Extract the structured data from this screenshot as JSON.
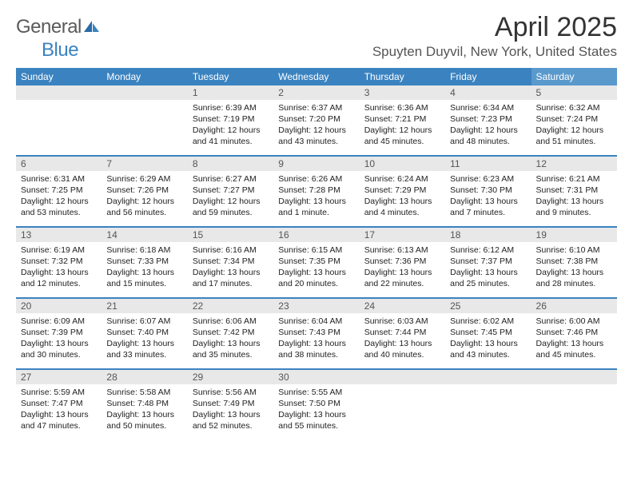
{
  "colors": {
    "header_bg": "#3b83c0",
    "header_bg_sat": "#5a99cc",
    "header_text": "#ffffff",
    "daynum_bg": "#e8e8e8",
    "daynum_text": "#555555",
    "body_text": "#222222",
    "separator": "#3b83c0",
    "page_bg": "#ffffff",
    "logo_gray": "#5a5a5a",
    "logo_blue": "#3b83c0"
  },
  "typography": {
    "title_fontsize": 34,
    "location_fontsize": 17,
    "header_fontsize": 12,
    "cell_fontsize": 10.5
  },
  "logo": {
    "text_a": "General",
    "text_b": "Blue"
  },
  "title": "April 2025",
  "location": "Spuyten Duyvil, New York, United States",
  "day_headers": [
    "Sunday",
    "Monday",
    "Tuesday",
    "Wednesday",
    "Thursday",
    "Friday",
    "Saturday"
  ],
  "weeks": [
    [
      null,
      null,
      {
        "num": "1",
        "sunrise": "Sunrise: 6:39 AM",
        "sunset": "Sunset: 7:19 PM",
        "daylight": "Daylight: 12 hours and 41 minutes."
      },
      {
        "num": "2",
        "sunrise": "Sunrise: 6:37 AM",
        "sunset": "Sunset: 7:20 PM",
        "daylight": "Daylight: 12 hours and 43 minutes."
      },
      {
        "num": "3",
        "sunrise": "Sunrise: 6:36 AM",
        "sunset": "Sunset: 7:21 PM",
        "daylight": "Daylight: 12 hours and 45 minutes."
      },
      {
        "num": "4",
        "sunrise": "Sunrise: 6:34 AM",
        "sunset": "Sunset: 7:23 PM",
        "daylight": "Daylight: 12 hours and 48 minutes."
      },
      {
        "num": "5",
        "sunrise": "Sunrise: 6:32 AM",
        "sunset": "Sunset: 7:24 PM",
        "daylight": "Daylight: 12 hours and 51 minutes."
      }
    ],
    [
      {
        "num": "6",
        "sunrise": "Sunrise: 6:31 AM",
        "sunset": "Sunset: 7:25 PM",
        "daylight": "Daylight: 12 hours and 53 minutes."
      },
      {
        "num": "7",
        "sunrise": "Sunrise: 6:29 AM",
        "sunset": "Sunset: 7:26 PM",
        "daylight": "Daylight: 12 hours and 56 minutes."
      },
      {
        "num": "8",
        "sunrise": "Sunrise: 6:27 AM",
        "sunset": "Sunset: 7:27 PM",
        "daylight": "Daylight: 12 hours and 59 minutes."
      },
      {
        "num": "9",
        "sunrise": "Sunrise: 6:26 AM",
        "sunset": "Sunset: 7:28 PM",
        "daylight": "Daylight: 13 hours and 1 minute."
      },
      {
        "num": "10",
        "sunrise": "Sunrise: 6:24 AM",
        "sunset": "Sunset: 7:29 PM",
        "daylight": "Daylight: 13 hours and 4 minutes."
      },
      {
        "num": "11",
        "sunrise": "Sunrise: 6:23 AM",
        "sunset": "Sunset: 7:30 PM",
        "daylight": "Daylight: 13 hours and 7 minutes."
      },
      {
        "num": "12",
        "sunrise": "Sunrise: 6:21 AM",
        "sunset": "Sunset: 7:31 PM",
        "daylight": "Daylight: 13 hours and 9 minutes."
      }
    ],
    [
      {
        "num": "13",
        "sunrise": "Sunrise: 6:19 AM",
        "sunset": "Sunset: 7:32 PM",
        "daylight": "Daylight: 13 hours and 12 minutes."
      },
      {
        "num": "14",
        "sunrise": "Sunrise: 6:18 AM",
        "sunset": "Sunset: 7:33 PM",
        "daylight": "Daylight: 13 hours and 15 minutes."
      },
      {
        "num": "15",
        "sunrise": "Sunrise: 6:16 AM",
        "sunset": "Sunset: 7:34 PM",
        "daylight": "Daylight: 13 hours and 17 minutes."
      },
      {
        "num": "16",
        "sunrise": "Sunrise: 6:15 AM",
        "sunset": "Sunset: 7:35 PM",
        "daylight": "Daylight: 13 hours and 20 minutes."
      },
      {
        "num": "17",
        "sunrise": "Sunrise: 6:13 AM",
        "sunset": "Sunset: 7:36 PM",
        "daylight": "Daylight: 13 hours and 22 minutes."
      },
      {
        "num": "18",
        "sunrise": "Sunrise: 6:12 AM",
        "sunset": "Sunset: 7:37 PM",
        "daylight": "Daylight: 13 hours and 25 minutes."
      },
      {
        "num": "19",
        "sunrise": "Sunrise: 6:10 AM",
        "sunset": "Sunset: 7:38 PM",
        "daylight": "Daylight: 13 hours and 28 minutes."
      }
    ],
    [
      {
        "num": "20",
        "sunrise": "Sunrise: 6:09 AM",
        "sunset": "Sunset: 7:39 PM",
        "daylight": "Daylight: 13 hours and 30 minutes."
      },
      {
        "num": "21",
        "sunrise": "Sunrise: 6:07 AM",
        "sunset": "Sunset: 7:40 PM",
        "daylight": "Daylight: 13 hours and 33 minutes."
      },
      {
        "num": "22",
        "sunrise": "Sunrise: 6:06 AM",
        "sunset": "Sunset: 7:42 PM",
        "daylight": "Daylight: 13 hours and 35 minutes."
      },
      {
        "num": "23",
        "sunrise": "Sunrise: 6:04 AM",
        "sunset": "Sunset: 7:43 PM",
        "daylight": "Daylight: 13 hours and 38 minutes."
      },
      {
        "num": "24",
        "sunrise": "Sunrise: 6:03 AM",
        "sunset": "Sunset: 7:44 PM",
        "daylight": "Daylight: 13 hours and 40 minutes."
      },
      {
        "num": "25",
        "sunrise": "Sunrise: 6:02 AM",
        "sunset": "Sunset: 7:45 PM",
        "daylight": "Daylight: 13 hours and 43 minutes."
      },
      {
        "num": "26",
        "sunrise": "Sunrise: 6:00 AM",
        "sunset": "Sunset: 7:46 PM",
        "daylight": "Daylight: 13 hours and 45 minutes."
      }
    ],
    [
      {
        "num": "27",
        "sunrise": "Sunrise: 5:59 AM",
        "sunset": "Sunset: 7:47 PM",
        "daylight": "Daylight: 13 hours and 47 minutes."
      },
      {
        "num": "28",
        "sunrise": "Sunrise: 5:58 AM",
        "sunset": "Sunset: 7:48 PM",
        "daylight": "Daylight: 13 hours and 50 minutes."
      },
      {
        "num": "29",
        "sunrise": "Sunrise: 5:56 AM",
        "sunset": "Sunset: 7:49 PM",
        "daylight": "Daylight: 13 hours and 52 minutes."
      },
      {
        "num": "30",
        "sunrise": "Sunrise: 5:55 AM",
        "sunset": "Sunset: 7:50 PM",
        "daylight": "Daylight: 13 hours and 55 minutes."
      },
      null,
      null,
      null
    ]
  ]
}
